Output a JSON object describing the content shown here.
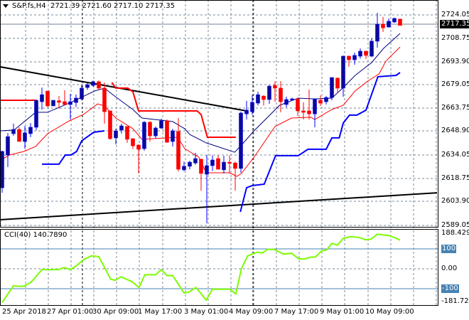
{
  "header": {
    "symbol": "S&P.fs,H4",
    "open": "2721.39",
    "high": "2721.60",
    "low": "2717.10",
    "close": "2717.35"
  },
  "colors": {
    "bull": "#0a0a96",
    "bear": "#ff0000",
    "ma_fast": "#000080",
    "ma_slow": "#ff0000",
    "stop_up": "#0000ff",
    "stop_down": "#ff0000",
    "trendline": "#000000",
    "cci": "#7cfc00",
    "cci_level": "#4682b4",
    "grid": "#778899"
  },
  "price_axis": {
    "labels": [
      "2724.05",
      "2708.75",
      "2693.90",
      "2679.05",
      "2663.75",
      "2648.90",
      "2634.05",
      "2618.75",
      "2603.90",
      "2589.05"
    ],
    "current": "2717.35"
  },
  "time_axis": {
    "labels": [
      "25 Apr 2018",
      "27 Apr 01:00",
      "30 Apr 09:00",
      "1 May 17:00",
      "3 May 01:00",
      "4 May 09:00",
      "7 May 17:00",
      "9 May 01:00",
      "10 May 09:00"
    ]
  },
  "cci": {
    "title": "CCI(40) 140.7890",
    "max_label": "188.4298",
    "min_label": "-181.7265",
    "level_up": "100",
    "zero": "0.00",
    "level_down": "-100"
  },
  "chart_data": {
    "type": "candlestick",
    "ylim": [
      2589.05,
      2724.05
    ],
    "candles_ohlc": [
      [
        2613.2,
        2637.0,
        2610.0,
        2636.5
      ],
      [
        2634.2,
        2648.3,
        2626.5,
        2646.0
      ],
      [
        2647.9,
        2654.3,
        2646.6,
        2650.6
      ],
      [
        2650.6,
        2652.0,
        2642.9,
        2642.9
      ],
      [
        2642.9,
        2652.9,
        2638.3,
        2648.4
      ],
      [
        2647.9,
        2654.7,
        2645.6,
        2652.0
      ],
      [
        2652.0,
        2669.3,
        2650.1,
        2669.3
      ],
      [
        2668.4,
        2677.5,
        2663.4,
        2672.9
      ],
      [
        2675.2,
        2675.2,
        2665.0,
        2665.7
      ],
      [
        2665.7,
        2669.3,
        2665.7,
        2669.3
      ],
      [
        2669.0,
        2672.0,
        2664.0,
        2668.0
      ],
      [
        2668.4,
        2675.7,
        2666.0,
        2666.6
      ],
      [
        2666.6,
        2673.4,
        2657.0,
        2668.4
      ],
      [
        2667.9,
        2673.0,
        2665.0,
        2670.7
      ],
      [
        2670.2,
        2679.3,
        2669.3,
        2677.1
      ],
      [
        2677.5,
        2680.7,
        2676.0,
        2679.3
      ],
      [
        2678.9,
        2682.0,
        2678.0,
        2681.2
      ],
      [
        2681.2,
        2682.0,
        2676.0,
        2677.1
      ],
      [
        2677.1,
        2680.7,
        2654.3,
        2662.0
      ],
      [
        2662.5,
        2662.5,
        2644.0,
        2644.7
      ],
      [
        2645.2,
        2651.0,
        2641.0,
        2649.7
      ],
      [
        2650.2,
        2654.3,
        2648.0,
        2652.9
      ],
      [
        2652.5,
        2652.5,
        2642.0,
        2644.3
      ],
      [
        2644.7,
        2645.0,
        2638.0,
        2640.1
      ],
      [
        2640.6,
        2641.0,
        2622.4,
        2637.9
      ],
      [
        2638.3,
        2656.0,
        2637.0,
        2655.2
      ],
      [
        2655.2,
        2656.0,
        2642.9,
        2646.5
      ],
      [
        2646.5,
        2652.5,
        2645.0,
        2651.5
      ],
      [
        2651.5,
        2657.5,
        2651.0,
        2656.1
      ],
      [
        2656.1,
        2657.0,
        2642.0,
        2642.4
      ],
      [
        2642.9,
        2651.0,
        2639.7,
        2649.7
      ],
      [
        2649.3,
        2657.9,
        2623.7,
        2625.1
      ],
      [
        2624.7,
        2630.0,
        2623.7,
        2627.0
      ],
      [
        2627.0,
        2630.5,
        2625.0,
        2629.6
      ],
      [
        2629.1,
        2635.6,
        2628.0,
        2631.9
      ],
      [
        2631.5,
        2632.0,
        2611.4,
        2622.4
      ],
      [
        2621.9,
        2634.2,
        2590.4,
        2627.4
      ],
      [
        2627.4,
        2634.0,
        2624.0,
        2631.0
      ],
      [
        2631.9,
        2634.0,
        2625.0,
        2625.1
      ],
      [
        2624.7,
        2633.7,
        2622.4,
        2629.6
      ],
      [
        2629.6,
        2634.0,
        2622.4,
        2629.1
      ],
      [
        2629.1,
        2630.0,
        2611.4,
        2625.6
      ],
      [
        2625.6,
        2662.0,
        2622.8,
        2661.1
      ],
      [
        2660.6,
        2668.9,
        2657.0,
        2663.0
      ],
      [
        2662.0,
        2672.5,
        2660.0,
        2668.0
      ],
      [
        2667.5,
        2674.8,
        2666.0,
        2672.9
      ],
      [
        2672.0,
        2672.5,
        2666.0,
        2669.8
      ],
      [
        2669.8,
        2679.0,
        2667.0,
        2678.4
      ],
      [
        2678.9,
        2681.6,
        2668.4,
        2677.1
      ],
      [
        2677.1,
        2681.6,
        2661.6,
        2668.4
      ],
      [
        2666.6,
        2671.6,
        2664.7,
        2669.8
      ],
      [
        2669.8,
        2671.0,
        2669.0,
        2670.2
      ],
      [
        2670.2,
        2671.0,
        2659.3,
        2662.5
      ],
      [
        2662.5,
        2668.0,
        2657.0,
        2661.6
      ],
      [
        2662.5,
        2676.2,
        2657.0,
        2660.6
      ],
      [
        2660.6,
        2670.5,
        2652.0,
        2670.2
      ],
      [
        2669.3,
        2672.5,
        2665.7,
        2667.5
      ],
      [
        2668.4,
        2672.0,
        2666.6,
        2671.1
      ],
      [
        2671.1,
        2684.0,
        2669.3,
        2683.9
      ],
      [
        2683.5,
        2684.0,
        2673.9,
        2677.1
      ],
      [
        2677.1,
        2698.0,
        2671.6,
        2697.6
      ],
      [
        2697.6,
        2698.0,
        2690.8,
        2695.3
      ],
      [
        2695.3,
        2699.9,
        2692.1,
        2698.1
      ],
      [
        2697.6,
        2702.6,
        2696.0,
        2700.8
      ],
      [
        2700.8,
        2701.0,
        2695.8,
        2698.1
      ],
      [
        2697.6,
        2709.0,
        2697.0,
        2707.2
      ],
      [
        2707.2,
        2725.4,
        2703.0,
        2718.1
      ],
      [
        2718.1,
        2722.7,
        2713.1,
        2715.8
      ],
      [
        2716.3,
        2721.8,
        2716.0,
        2720.0
      ],
      [
        2719.5,
        2722.3,
        2719.0,
        2721.8
      ],
      [
        2721.39,
        2721.6,
        2717.1,
        2717.35
      ]
    ],
    "ma_fast": [
      [
        -0.4,
        2649.7
      ],
      [
        2.1,
        2650.2
      ],
      [
        5.9,
        2661.6
      ],
      [
        8,
        2661.6
      ],
      [
        12.1,
        2668.0
      ],
      [
        16.3,
        2675.3
      ],
      [
        18,
        2677.1
      ],
      [
        19.6,
        2672.5
      ],
      [
        23,
        2663.4
      ],
      [
        24.6,
        2657.9
      ],
      [
        30,
        2655.7
      ],
      [
        32.1,
        2651.1
      ],
      [
        33,
        2647.4
      ],
      [
        35.9,
        2642.0
      ],
      [
        40.9,
        2636.0
      ],
      [
        42.1,
        2640.6
      ],
      [
        44.3,
        2649.7
      ],
      [
        46.8,
        2658.8
      ],
      [
        48.8,
        2666.1
      ],
      [
        52.1,
        2670.7
      ],
      [
        55,
        2670.2
      ],
      [
        58,
        2670.7
      ],
      [
        60,
        2677.5
      ],
      [
        62.1,
        2685.3
      ],
      [
        65,
        2693.5
      ],
      [
        67.1,
        2702.6
      ],
      [
        70,
        2712.2
      ]
    ],
    "ma_slow": [
      [
        -0.4,
        2630.6
      ],
      [
        1.3,
        2634.2
      ],
      [
        3.8,
        2636.5
      ],
      [
        5.9,
        2639.7
      ],
      [
        8,
        2647.9
      ],
      [
        11.8,
        2656.1
      ],
      [
        14.3,
        2660.2
      ],
      [
        16.8,
        2667.0
      ],
      [
        18,
        2665.7
      ],
      [
        20,
        2657.9
      ],
      [
        23,
        2651.1
      ],
      [
        24.6,
        2644.3
      ],
      [
        30.9,
        2645.6
      ],
      [
        32.1,
        2638.3
      ],
      [
        34.6,
        2632.8
      ],
      [
        35.9,
        2622.8
      ],
      [
        40,
        2622.8
      ],
      [
        41.3,
        2620.5
      ],
      [
        42.1,
        2622.4
      ],
      [
        44.3,
        2632.8
      ],
      [
        48,
        2652.5
      ],
      [
        50.9,
        2657.9
      ],
      [
        54.3,
        2658.4
      ],
      [
        55,
        2657.0
      ],
      [
        58,
        2663.4
      ],
      [
        60,
        2666.1
      ],
      [
        62.1,
        2675.3
      ],
      [
        64.3,
        2681.6
      ],
      [
        66.3,
        2686.2
      ],
      [
        67.5,
        2694.4
      ],
      [
        70,
        2703.5
      ]
    ],
    "stop_down": [
      [
        [
          -0.4,
          2669.3
        ],
        [
          6.1,
          2669.3
        ]
      ],
      [
        [
          19.3,
          2680.7
        ],
        [
          20,
          2677.1
        ],
        [
          22.1,
          2677.1
        ],
        [
          23,
          2674.8
        ],
        [
          24,
          2662.5
        ],
        [
          34.3,
          2662.5
        ],
        [
          35,
          2660.2
        ],
        [
          36.1,
          2645.6
        ],
        [
          41.1,
          2645.6
        ]
      ]
    ],
    "stop_up": [
      [
        [
          7,
          2628.3
        ],
        [
          10,
          2628.3
        ],
        [
          11.1,
          2634.2
        ],
        [
          12.1,
          2634.2
        ],
        [
          13.1,
          2636.5
        ],
        [
          14,
          2643.3
        ],
        [
          16.1,
          2648.8
        ],
        [
          18,
          2649.7
        ]
      ],
      [
        [
          41.9,
          2597.7
        ],
        [
          43,
          2613.2
        ],
        [
          44,
          2614.6
        ],
        [
          46.1,
          2615.5
        ],
        [
          48.1,
          2633.8
        ],
        [
          52.1,
          2633.8
        ],
        [
          53.8,
          2637.9
        ],
        [
          57,
          2637.9
        ],
        [
          58,
          2645.2
        ],
        [
          59.3,
          2645.2
        ],
        [
          60,
          2654.7
        ],
        [
          61.1,
          2659.8
        ],
        [
          62.4,
          2659.8
        ],
        [
          64,
          2663.0
        ],
        [
          66.1,
          2684.4
        ],
        [
          69.3,
          2685.3
        ],
        [
          70,
          2687.1
        ]
      ]
    ],
    "trendlines": [
      [
        [
          -0.4,
          2690.8
        ],
        [
          43,
          2662.5
        ]
      ],
      [
        [
          -0.4,
          2592.7
        ],
        [
          76.5,
          2610.0
        ]
      ]
    ],
    "cci_values": [
      [
        0,
        -169
      ],
      [
        2.0,
        -85
      ],
      [
        2.8,
        -88
      ],
      [
        3.8,
        -88
      ],
      [
        5.1,
        -67
      ],
      [
        7.0,
        -4
      ],
      [
        9.9,
        -4
      ],
      [
        10.9,
        6
      ],
      [
        12.0,
        -4
      ],
      [
        13.0,
        14
      ],
      [
        14.4,
        47
      ],
      [
        15.7,
        65
      ],
      [
        17.0,
        61
      ],
      [
        19.1,
        -52
      ],
      [
        19.9,
        -58
      ],
      [
        20.9,
        -40
      ],
      [
        22.8,
        -64
      ],
      [
        24.1,
        -94
      ],
      [
        25.1,
        -30
      ],
      [
        27.0,
        -30
      ],
      [
        28.0,
        -4
      ],
      [
        29.0,
        -34
      ],
      [
        30.0,
        -34
      ],
      [
        32.0,
        -121
      ],
      [
        32.8,
        -118
      ],
      [
        34.1,
        -94
      ],
      [
        35.9,
        -157
      ],
      [
        37.0,
        -103
      ],
      [
        40.1,
        -103
      ],
      [
        41.1,
        -126
      ],
      [
        42.1,
        2
      ],
      [
        43.2,
        65
      ],
      [
        44.8,
        83
      ],
      [
        45.8,
        80
      ],
      [
        46.7,
        98
      ],
      [
        47.8,
        98
      ],
      [
        49.5,
        74
      ],
      [
        50.9,
        78
      ],
      [
        52.2,
        50
      ],
      [
        53.3,
        50
      ],
      [
        54.3,
        59
      ],
      [
        55.1,
        59
      ],
      [
        56.2,
        90
      ],
      [
        57.1,
        95
      ],
      [
        58.0,
        128
      ],
      [
        59.0,
        119
      ],
      [
        60.0,
        152
      ],
      [
        61.2,
        161
      ],
      [
        62.8,
        158
      ],
      [
        63.9,
        146
      ],
      [
        64.9,
        149
      ],
      [
        66.0,
        174
      ],
      [
        67.0,
        170
      ],
      [
        68.0,
        167
      ],
      [
        69.1,
        156
      ],
      [
        70.0,
        144
      ]
    ],
    "cci_ylim": [
      -181.7265,
      188.4298
    ]
  }
}
